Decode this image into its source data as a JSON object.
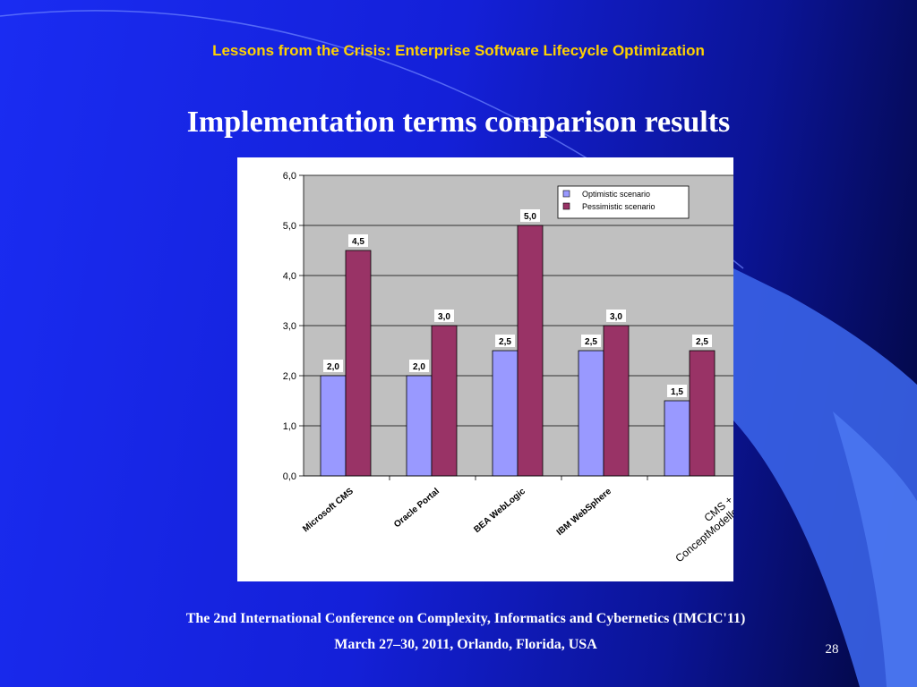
{
  "slide": {
    "subtitle": "Lessons from the Crisis: Enterprise Software Lifecycle Optimization",
    "title": "Implementation terms comparison results",
    "footer_line1": "The 2nd International Conference on Complexity, Informatics and Cybernetics  (IMCIC'11)",
    "footer_line2": "March 27–30, 2011, Orlando, Florida, USA",
    "page_number": "28"
  },
  "colors": {
    "accent_yellow": "#ffd200",
    "optimistic": "#9999ff",
    "pessimistic": "#993366",
    "plot_bg": "#c0c0c0"
  },
  "chart_data": {
    "type": "bar",
    "categories": [
      "Microsoft CMS",
      "Oracle Portal",
      "BEA WebLogic",
      "IBM WebSphere",
      "CMS + ConceptModeller"
    ],
    "series": [
      {
        "name": "Optimistic scenario",
        "values": [
          2.0,
          2.0,
          2.5,
          2.5,
          1.5
        ],
        "labels": [
          "2,0",
          "2,0",
          "2,5",
          "2,5",
          "1,5"
        ]
      },
      {
        "name": "Pessimistic scenario",
        "values": [
          4.5,
          3.0,
          5.0,
          3.0,
          2.5
        ],
        "labels": [
          "4,5",
          "3,0",
          "5,0",
          "3,0",
          "2,5"
        ]
      }
    ],
    "ylim": [
      0,
      6
    ],
    "yticks": [
      0,
      1,
      2,
      3,
      4,
      5,
      6
    ],
    "ytick_labels": [
      "0,0",
      "1,0",
      "2,0",
      "3,0",
      "4,0",
      "5,0",
      "6,0"
    ],
    "grid": true,
    "legend_position": "top-right",
    "xlabel": "",
    "ylabel": ""
  }
}
